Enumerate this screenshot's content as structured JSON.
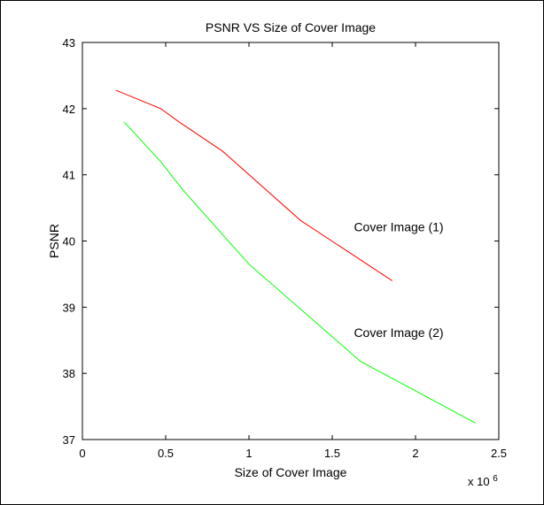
{
  "chart_data": {
    "type": "line",
    "title": "PSNR VS Size of Cover Image",
    "xlabel": "Size of Cover Image",
    "ylabel": "PSNR",
    "x_exponent_label": "x 10",
    "x_exponent_power": "6",
    "xlim": [
      0,
      2.5
    ],
    "ylim": [
      37,
      43
    ],
    "xticks": [
      0,
      0.5,
      1,
      1.5,
      2,
      2.5
    ],
    "xtick_labels": [
      "0",
      "0.5",
      "1",
      "1.5",
      "2",
      "2.5"
    ],
    "yticks": [
      37,
      38,
      39,
      40,
      41,
      42,
      43
    ],
    "ytick_labels": [
      "37",
      "38",
      "39",
      "40",
      "41",
      "42",
      "43"
    ],
    "grid": false,
    "series": [
      {
        "name": "Cover Image (1)",
        "color": "#ff0000",
        "x": [
          0.2,
          0.47,
          0.58,
          0.84,
          1.31,
          1.86
        ],
        "y": [
          42.28,
          42.0,
          41.8,
          41.36,
          40.31,
          39.4
        ]
      },
      {
        "name": "Cover Image (2)",
        "color": "#00ff00",
        "x": [
          0.25,
          0.47,
          0.6,
          1.0,
          1.67,
          2.36
        ],
        "y": [
          41.8,
          41.2,
          40.78,
          39.65,
          38.18,
          37.25
        ]
      }
    ],
    "annotations": [
      {
        "text": "Cover Image (1)",
        "x": 1.63,
        "y": 40.15
      },
      {
        "text": "Cover Image (2)",
        "x": 1.63,
        "y": 38.55
      }
    ]
  }
}
